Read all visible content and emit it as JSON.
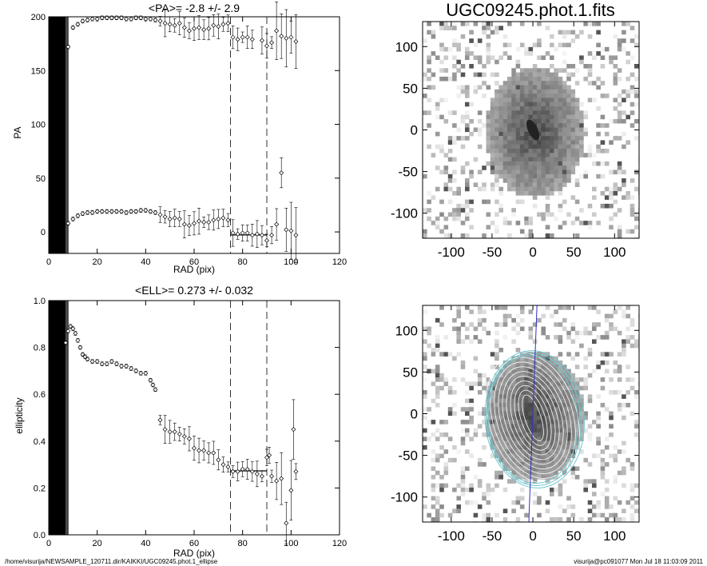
{
  "footer": {
    "left": "/home/visurija/NEWSAMPLE_120711.dir/KAIKKI/UGC09245.phot.1_ellipse",
    "right": "visurija@pc091077  Mon Jul 18 11:03:09 2011"
  },
  "chart_data": [
    {
      "type": "scatter",
      "title": "<PA>=  -2.8 +/-   2.9",
      "xlabel": "RAD (pix)",
      "ylabel": "PA",
      "xlim": [
        0,
        120
      ],
      "ylim": [
        -20,
        200
      ],
      "xticks": [
        "0",
        "20",
        "40",
        "60",
        "80",
        "100",
        "120"
      ],
      "yticks": [
        "0",
        "50",
        "100",
        "150",
        "200"
      ],
      "vlines": [
        75,
        90
      ],
      "hline": {
        "x": [
          75,
          90
        ],
        "y": -2.8
      },
      "series": [
        {
          "points": [
            [
              8,
              172
            ],
            [
              10,
              190
            ],
            [
              12,
              193
            ],
            [
              14,
              196
            ],
            [
              16,
              197
            ],
            [
              18,
              198
            ],
            [
              20,
              198
            ],
            [
              22,
              199
            ],
            [
              24,
              199
            ],
            [
              26,
              199
            ],
            [
              28,
              199
            ],
            [
              30,
              199
            ],
            [
              32,
              198
            ],
            [
              34,
              198
            ],
            [
              36,
              199
            ],
            [
              38,
              199
            ],
            [
              40,
              198
            ],
            [
              42,
              198
            ],
            [
              44,
              197
            ],
            [
              46,
              196
            ],
            [
              48,
              194
            ],
            [
              50,
              193
            ],
            [
              52,
              192
            ],
            [
              54,
              194
            ],
            [
              56,
              190
            ],
            [
              58,
              187
            ],
            [
              60,
              189
            ],
            [
              62,
              190
            ],
            [
              64,
              188
            ],
            [
              66,
              189
            ],
            [
              68,
              192
            ],
            [
              70,
              191
            ],
            [
              72,
              193
            ],
            [
              74,
              194
            ],
            [
              76,
              181
            ],
            [
              78,
              179
            ],
            [
              80,
              181
            ],
            [
              82,
              181
            ],
            [
              84,
              179
            ],
            [
              88,
              178
            ],
            [
              90,
              173
            ],
            [
              92,
              176
            ],
            [
              94,
              187
            ],
            [
              96,
              182
            ],
            [
              98,
              180
            ],
            [
              100,
              181
            ],
            [
              102,
              177
            ]
          ]
        },
        {
          "points": [
            [
              8,
              8
            ],
            [
              10,
              12
            ],
            [
              12,
              15
            ],
            [
              14,
              17
            ],
            [
              16,
              18
            ],
            [
              18,
              18
            ],
            [
              20,
              19
            ],
            [
              22,
              19
            ],
            [
              24,
              19
            ],
            [
              26,
              19
            ],
            [
              28,
              19
            ],
            [
              30,
              19
            ],
            [
              32,
              18
            ],
            [
              34,
              19
            ],
            [
              36,
              19
            ],
            [
              38,
              20
            ],
            [
              40,
              20
            ],
            [
              42,
              19
            ],
            [
              44,
              18
            ],
            [
              46,
              16
            ],
            [
              48,
              14
            ],
            [
              50,
              12
            ],
            [
              52,
              13
            ],
            [
              54,
              12
            ],
            [
              56,
              7
            ],
            [
              58,
              6
            ],
            [
              60,
              8
            ],
            [
              62,
              10
            ],
            [
              64,
              9
            ],
            [
              66,
              9
            ],
            [
              68,
              11
            ],
            [
              70,
              12
            ],
            [
              72,
              13
            ],
            [
              74,
              11
            ],
            [
              76,
              -1
            ],
            [
              78,
              -2
            ],
            [
              80,
              -1
            ],
            [
              82,
              -1
            ],
            [
              84,
              -3
            ],
            [
              86,
              -2
            ],
            [
              88,
              -3
            ],
            [
              90,
              -8
            ],
            [
              92,
              -3
            ],
            [
              94,
              7
            ],
            [
              96,
              55
            ],
            [
              98,
              2
            ],
            [
              100,
              1
            ],
            [
              102,
              -3
            ]
          ]
        }
      ]
    },
    {
      "type": "scatter",
      "title": "<ELL>= 0.273 +/-  0.032",
      "xlabel": "RAD (pix)",
      "ylabel": "ellipticity",
      "xlim": [
        0,
        120
      ],
      "ylim": [
        0.0,
        1.0
      ],
      "xticks": [
        "0",
        "20",
        "40",
        "60",
        "80",
        "100",
        "120"
      ],
      "yticks": [
        "0.0",
        "0.2",
        "0.4",
        "0.6",
        "0.8",
        "1.0"
      ],
      "vlines": [
        75,
        90
      ],
      "hline": {
        "x": [
          75,
          90
        ],
        "y": 0.273
      },
      "series": [
        {
          "points": [
            [
              7,
              0.82
            ],
            [
              8,
              0.87
            ],
            [
              9,
              0.89
            ],
            [
              10,
              0.88
            ],
            [
              11,
              0.86
            ],
            [
              12,
              0.83
            ],
            [
              13,
              0.8
            ],
            [
              14,
              0.77
            ],
            [
              15,
              0.76
            ],
            [
              16,
              0.75
            ],
            [
              18,
              0.74
            ],
            [
              20,
              0.74
            ],
            [
              22,
              0.73
            ],
            [
              24,
              0.73
            ],
            [
              26,
              0.74
            ],
            [
              28,
              0.73
            ],
            [
              30,
              0.72
            ],
            [
              32,
              0.72
            ],
            [
              34,
              0.71
            ],
            [
              36,
              0.7
            ],
            [
              38,
              0.69
            ],
            [
              40,
              0.69
            ],
            [
              42,
              0.66
            ],
            [
              43,
              0.64
            ],
            [
              44,
              0.62
            ],
            [
              46,
              0.49
            ],
            [
              48,
              0.45
            ],
            [
              50,
              0.44
            ],
            [
              52,
              0.44
            ],
            [
              54,
              0.43
            ],
            [
              56,
              0.42
            ],
            [
              58,
              0.41
            ],
            [
              60,
              0.37
            ],
            [
              62,
              0.36
            ],
            [
              64,
              0.36
            ],
            [
              66,
              0.35
            ],
            [
              68,
              0.35
            ],
            [
              70,
              0.32
            ],
            [
              72,
              0.3
            ],
            [
              74,
              0.29
            ],
            [
              76,
              0.27
            ],
            [
              78,
              0.27
            ],
            [
              80,
              0.28
            ],
            [
              82,
              0.28
            ],
            [
              84,
              0.27
            ],
            [
              86,
              0.26
            ],
            [
              88,
              0.25
            ],
            [
              90,
              0.33
            ],
            [
              91,
              0.34
            ],
            [
              92,
              0.25
            ],
            [
              94,
              0.23
            ],
            [
              96,
              0.24
            ],
            [
              98,
              0.05
            ],
            [
              100,
              0.19
            ],
            [
              101,
              0.45
            ],
            [
              102,
              0.27
            ]
          ]
        }
      ]
    },
    {
      "type": "heatmap",
      "title": "UGC09245.phot.1.fits",
      "xlim": [
        -135,
        130
      ],
      "ylim": [
        -130,
        130
      ],
      "xticks": [
        "-100",
        "-50",
        "0",
        "50",
        "100"
      ],
      "yticks": [
        "100",
        "50",
        "0",
        "-50",
        "-100"
      ]
    },
    {
      "type": "heatmap",
      "title": "",
      "xlim": [
        -135,
        130
      ],
      "ylim": [
        -130,
        130
      ],
      "xticks": [
        "-100",
        "-50",
        "0",
        "50",
        "100"
      ],
      "yticks": [
        "100",
        "50",
        "0",
        "-50",
        "-100"
      ],
      "contour_color": "#70c8d0",
      "axis_line_color": "#3030c0"
    }
  ]
}
